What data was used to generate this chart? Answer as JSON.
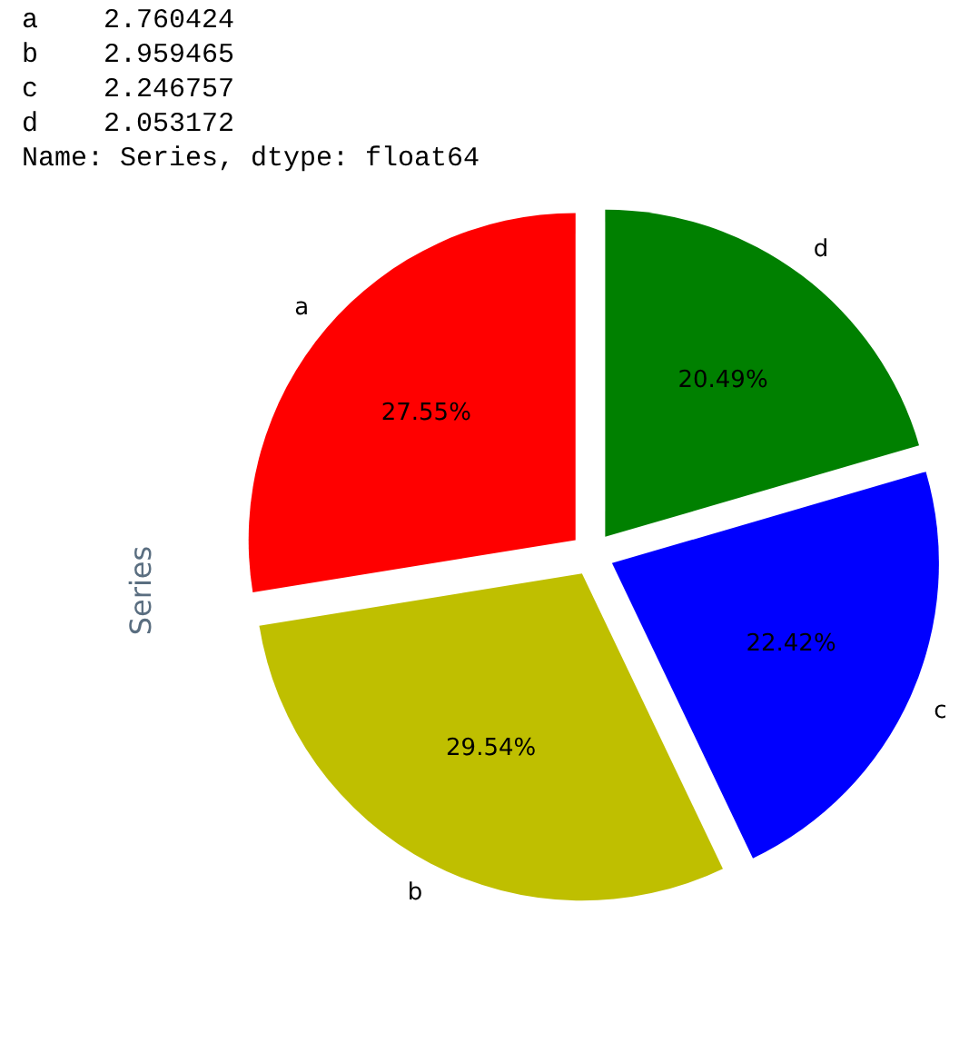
{
  "chart_data": {
    "type": "pie",
    "ylabel": "Series",
    "annotations": [
      "a    2.760424",
      "b    2.959465",
      "c    2.246757",
      "d    2.053172",
      "Name: Series, dtype: float64"
    ],
    "categories": [
      "a",
      "b",
      "c",
      "d"
    ],
    "values": [
      27.55,
      29.54,
      22.42,
      20.49
    ],
    "colors": [
      "#ff0000",
      "#bfbf00",
      "#0000ff",
      "#008000"
    ],
    "value_labels": [
      "27.55%",
      "29.54%",
      "22.42%",
      "20.49%"
    ]
  }
}
